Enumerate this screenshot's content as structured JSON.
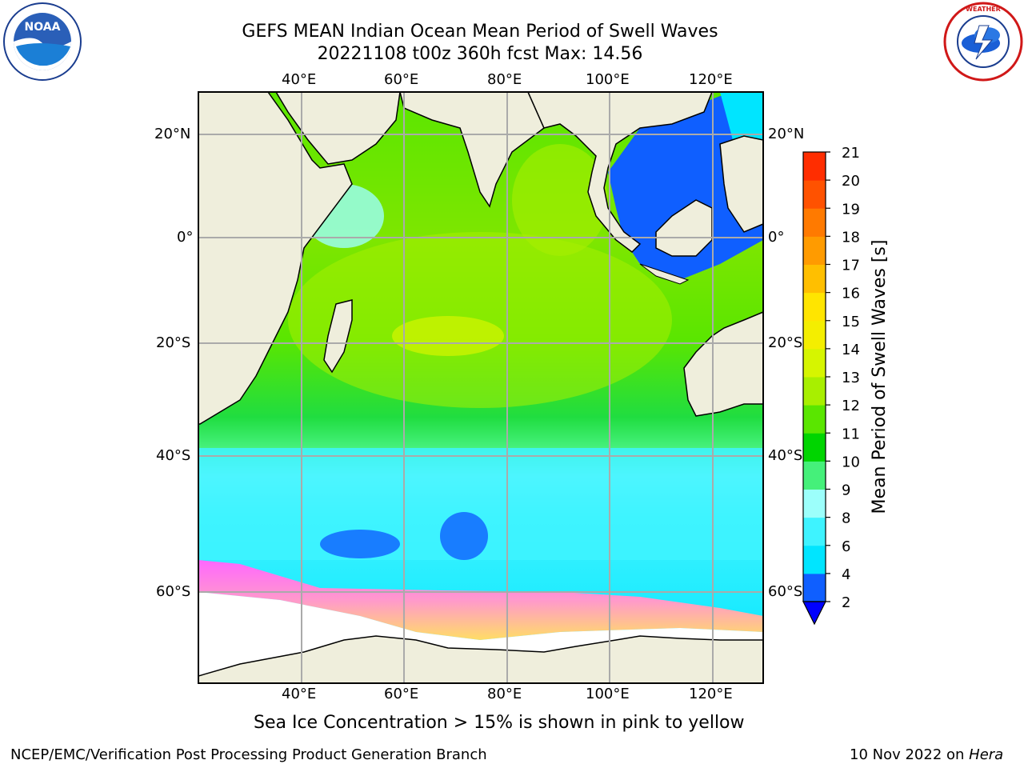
{
  "title": {
    "line1": "GEFS MEAN Indian Ocean Mean Period of Swell Waves",
    "line2": "20221108 t00z 360h fcst   Max: 14.56"
  },
  "axes": {
    "lon_labels": [
      "40°E",
      "60°E",
      "80°E",
      "100°E",
      "120°E"
    ],
    "lat_labels": [
      "20°N",
      "0°",
      "20°S",
      "40°S",
      "60°S"
    ]
  },
  "colorbar": {
    "label": "Mean Period of Swell Waves [s]",
    "ticks": [
      "2",
      "4",
      "6",
      "8",
      "9",
      "10",
      "11",
      "12",
      "13",
      "14",
      "15",
      "16",
      "17",
      "18",
      "19",
      "20",
      "21"
    ],
    "colors": [
      "#0f5fff",
      "#00e5ff",
      "#3ef3ff",
      "#9cfffb",
      "#45f07a",
      "#00d500",
      "#5ae600",
      "#a8ef00",
      "#d6f500",
      "#f4ee00",
      "#ffe500",
      "#ffbf00",
      "#ff9b00",
      "#ff7a00",
      "#ff5200",
      "#ff2d00",
      "#ff0000"
    ],
    "under_color": "#0000ff"
  },
  "note": "Sea Ice Concentration > 15% is shown in pink to yellow",
  "footer": {
    "left": "NCEP/EMC/Verification Post Processing Product Generation Branch",
    "right_date": "10 Nov 2022 on",
    "right_host": "Hera"
  },
  "logos": {
    "noaa": "NOAA",
    "nws": "NATIONAL WEATHER SERVICE"
  }
}
